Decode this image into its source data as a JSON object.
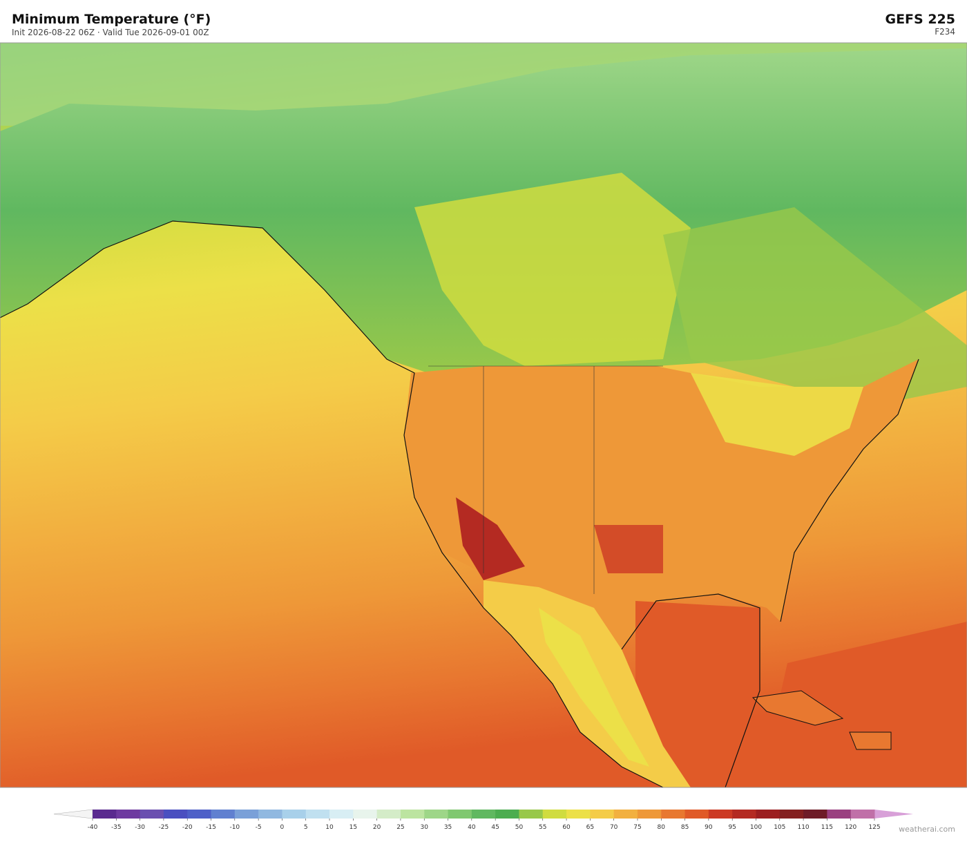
{
  "header": {
    "title": "Minimum Temperature  (°F)",
    "subtitle": "Init 2026-08-22 06Z  ·  Valid Tue 2026-09-01 00Z",
    "model": "GEFS  225",
    "forecast_hour": "F234"
  },
  "colorbar": {
    "ticks": [
      -40,
      -35,
      -30,
      -25,
      -20,
      -15,
      -10,
      -5,
      0,
      5,
      10,
      15,
      20,
      25,
      30,
      35,
      40,
      45,
      50,
      55,
      60,
      65,
      70,
      75,
      80,
      85,
      90,
      95,
      100,
      105,
      110,
      115,
      120,
      125
    ],
    "colors": [
      "#5a2a8f",
      "#6e3aa0",
      "#6a4fb0",
      "#4a4fc0",
      "#4e60c8",
      "#6080d0",
      "#7aa0d8",
      "#90b8e0",
      "#a8d0ea",
      "#c0e0f0",
      "#d8eef4",
      "#e8f4ec",
      "#d4ecc8",
      "#bce4a0",
      "#9ed688",
      "#80c870",
      "#60b860",
      "#4cad50",
      "#98c84a",
      "#d0dc40",
      "#ece048",
      "#f4cc48",
      "#f2b040",
      "#ee9838",
      "#e87830",
      "#e05a28",
      "#cc3a24",
      "#b42a22",
      "#9c1e20",
      "#842020",
      "#6e1c28",
      "#9a4080",
      "#c070a8"
    ],
    "under_color": "#f4f4f4",
    "over_color": "#d8a0d8"
  },
  "footer": {
    "watermark": "weatherai.com"
  }
}
